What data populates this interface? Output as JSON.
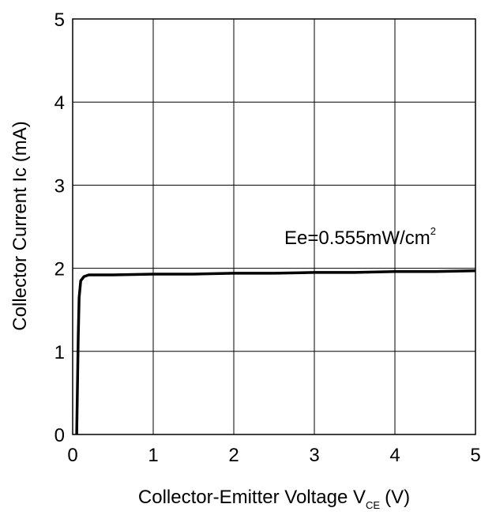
{
  "chart_data": {
    "type": "line",
    "title": "",
    "xlabel": {
      "main": "Collector-Emitter Voltage V",
      "subscript": "CE",
      "unit": "(V)"
    },
    "ylabel": "Collector Current Ic (mA)",
    "xlim": [
      0,
      5
    ],
    "ylim": [
      0,
      5
    ],
    "xticks": [
      "0",
      "1",
      "2",
      "3",
      "4",
      "5"
    ],
    "yticks": [
      "0",
      "1",
      "2",
      "3",
      "4",
      "5"
    ],
    "grid": true,
    "series": [
      {
        "x": [
          0.05,
          0.06,
          0.07,
          0.08,
          0.1,
          0.14,
          0.2,
          0.3,
          0.5,
          1,
          1.5,
          2,
          2.5,
          3,
          3.5,
          4,
          4.5,
          5
        ],
        "y": [
          0,
          0.6,
          1.2,
          1.65,
          1.85,
          1.9,
          1.92,
          1.92,
          1.92,
          1.93,
          1.93,
          1.94,
          1.94,
          1.95,
          1.95,
          1.96,
          1.96,
          1.97
        ],
        "color": "#000000"
      }
    ],
    "annotation": {
      "main": "Ee=0.555mW/cm",
      "superscript": "2"
    }
  }
}
